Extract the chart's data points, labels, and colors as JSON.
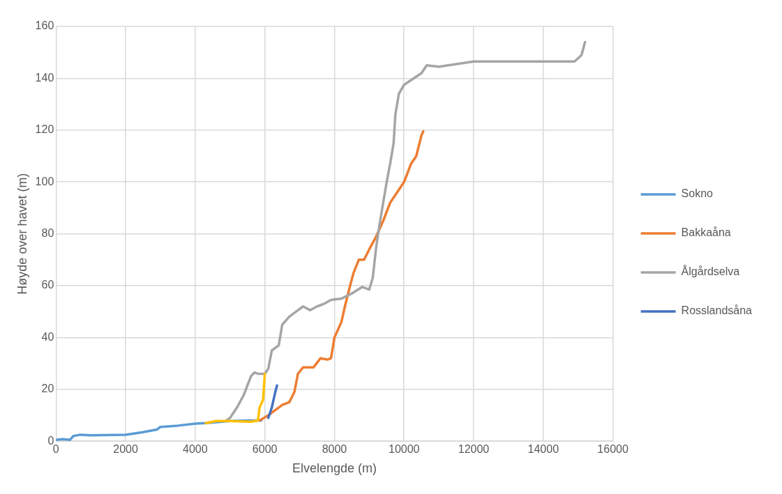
{
  "chart_data": {
    "type": "line",
    "xlabel": "Elvelengde (m)",
    "ylabel": "Høyde over havet (m)",
    "xlim": [
      0,
      16000
    ],
    "xticks": [
      0,
      2000,
      4000,
      6000,
      8000,
      10000,
      12000,
      14000,
      16000
    ],
    "ylim": [
      0,
      160
    ],
    "yticks": [
      0,
      20,
      40,
      60,
      80,
      100,
      120,
      140,
      160
    ],
    "grid": true,
    "legend": "right",
    "marker": "none",
    "line_style": "solid",
    "series": [
      {
        "name": "Sokno",
        "color": "#5b9bd5",
        "x": [
          0,
          200,
          400,
          500,
          700,
          1000,
          2000,
          2500,
          2900,
          3000,
          3500,
          4000,
          4300,
          5000,
          5500,
          5900
        ],
        "values": [
          0.5,
          0.8,
          0.5,
          2,
          2.5,
          2.3,
          2.5,
          3.5,
          4.5,
          5.5,
          6,
          6.8,
          7,
          7.8,
          8,
          8
        ]
      },
      {
        "name": "Bakkaåna",
        "color": "#ed7d31",
        "x": [
          5850,
          6100,
          6300,
          6500,
          6700,
          6850,
          6950,
          7100,
          7400,
          7600,
          7800,
          7900,
          8000,
          8200,
          8300,
          8450,
          8550,
          8700,
          8850,
          9000,
          9200,
          9400,
          9600,
          9800,
          10000,
          10200,
          10350,
          10500,
          10550
        ],
        "values": [
          8,
          10,
          12,
          14,
          15,
          19,
          26,
          28.5,
          28.5,
          32,
          31.5,
          32,
          40,
          46,
          52,
          60,
          65,
          70,
          70,
          74,
          79,
          85,
          92,
          96,
          100,
          107,
          110,
          118,
          119.5
        ]
      },
      {
        "name": "Ålgårdselva",
        "color": "#a5a5a5",
        "x": [
          4900,
          5000,
          5200,
          5400,
          5600,
          5700,
          5800,
          6000,
          6100,
          6200,
          6400,
          6500,
          6700,
          6900,
          7100,
          7300,
          7500,
          7700,
          7900,
          8200,
          8500,
          8800,
          9000,
          9100,
          9200,
          9300,
          9400,
          9500,
          9600,
          9700,
          9750,
          9850,
          10000,
          10500,
          10650,
          11000,
          11500,
          12000,
          13000,
          14000,
          14500,
          14900,
          15100,
          15200
        ],
        "values": [
          8,
          9,
          13,
          18,
          25,
          26.5,
          26,
          26,
          28,
          35,
          37,
          45,
          48,
          50,
          52,
          50.5,
          52,
          53,
          54.5,
          55,
          57,
          59.5,
          58.5,
          63,
          75,
          84,
          92,
          100,
          107,
          115,
          126,
          134,
          137.5,
          142,
          145,
          144.5,
          145.5,
          146.5,
          146.5,
          146.5,
          146.5,
          146.5,
          149,
          154
        ]
      },
      {
        "name": "Rosslandsåna",
        "color": "#4472c4",
        "x": [
          6100,
          6200,
          6300,
          6350
        ],
        "values": [
          9,
          13,
          19,
          21.5
        ]
      },
      {
        "color": "#ffc000",
        "x": [
          4300,
          4600,
          5000,
          5600,
          5800,
          5850,
          5950,
          6000
        ],
        "values": [
          7,
          7.8,
          7.8,
          7.5,
          8,
          13,
          16,
          26
        ]
      }
    ]
  }
}
